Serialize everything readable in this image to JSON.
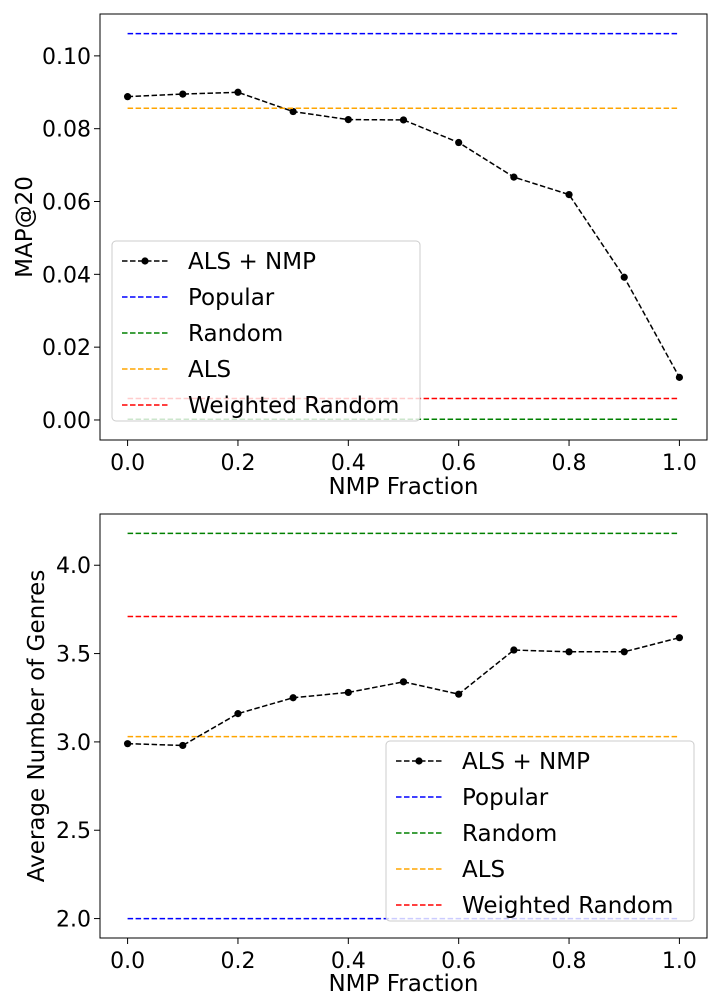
{
  "chart_data": [
    {
      "type": "line",
      "xlabel": "NMP Fraction",
      "ylabel": "MAP@20",
      "xlim": [
        -0.05,
        1.05
      ],
      "ylim": [
        -0.0055,
        0.1115
      ],
      "xticks": [
        0.0,
        0.2,
        0.4,
        0.6,
        0.8,
        1.0
      ],
      "xtick_labels": [
        "0.0",
        "0.2",
        "0.4",
        "0.6",
        "0.8",
        "1.0"
      ],
      "yticks": [
        0.0,
        0.02,
        0.04,
        0.06,
        0.08,
        0.1
      ],
      "ytick_labels": [
        "0.00",
        "0.02",
        "0.04",
        "0.06",
        "0.08",
        "0.10"
      ],
      "grid": false,
      "legend_position": "lower-left",
      "series": [
        {
          "name": "ALS + NMP",
          "color": "#000000",
          "style": "dashed-with-markers",
          "x": [
            0.0,
            0.1,
            0.2,
            0.3,
            0.4,
            0.5,
            0.6,
            0.7,
            0.8,
            0.9,
            1.0
          ],
          "y": [
            0.0888,
            0.0895,
            0.09,
            0.0847,
            0.0825,
            0.0824,
            0.0762,
            0.0667,
            0.0619,
            0.0392,
            0.0117
          ]
        },
        {
          "name": "Popular",
          "color": "#0000ff",
          "style": "dashed-horizontal",
          "x": [
            0.0,
            1.0
          ],
          "y": [
            0.1061,
            0.1061
          ]
        },
        {
          "name": "Random",
          "color": "#008000",
          "style": "dashed-horizontal",
          "x": [
            0.0,
            1.0
          ],
          "y": [
            0.0002,
            0.0002
          ]
        },
        {
          "name": "ALS",
          "color": "#ffa500",
          "style": "dashed-horizontal",
          "x": [
            0.0,
            1.0
          ],
          "y": [
            0.0856,
            0.0856
          ]
        },
        {
          "name": "Weighted Random",
          "color": "#ff0000",
          "style": "dashed-horizontal",
          "x": [
            0.0,
            1.0
          ],
          "y": [
            0.0059,
            0.0059
          ]
        }
      ]
    },
    {
      "type": "line",
      "xlabel": "NMP Fraction",
      "ylabel": "Average Number of Genres",
      "xlim": [
        -0.05,
        1.05
      ],
      "ylim": [
        1.89,
        4.29
      ],
      "xticks": [
        0.0,
        0.2,
        0.4,
        0.6,
        0.8,
        1.0
      ],
      "xtick_labels": [
        "0.0",
        "0.2",
        "0.4",
        "0.6",
        "0.8",
        "1.0"
      ],
      "yticks": [
        2.0,
        2.5,
        3.0,
        3.5,
        4.0
      ],
      "ytick_labels": [
        "2.0",
        "2.5",
        "3.0",
        "3.5",
        "4.0"
      ],
      "grid": false,
      "legend_position": "lower-right",
      "series": [
        {
          "name": "ALS + NMP",
          "color": "#000000",
          "style": "dashed-with-markers",
          "x": [
            0.0,
            0.1,
            0.2,
            0.3,
            0.4,
            0.5,
            0.6,
            0.7,
            0.8,
            0.9,
            1.0
          ],
          "y": [
            2.99,
            2.98,
            3.16,
            3.25,
            3.28,
            3.34,
            3.27,
            3.52,
            3.51,
            3.51,
            3.59
          ]
        },
        {
          "name": "Popular",
          "color": "#0000ff",
          "style": "dashed-horizontal",
          "x": [
            0.0,
            1.0
          ],
          "y": [
            2.0,
            2.0
          ]
        },
        {
          "name": "Random",
          "color": "#008000",
          "style": "dashed-horizontal",
          "x": [
            0.0,
            1.0
          ],
          "y": [
            4.18,
            4.18
          ]
        },
        {
          "name": "ALS",
          "color": "#ffa500",
          "style": "dashed-horizontal",
          "x": [
            0.0,
            1.0
          ],
          "y": [
            3.03,
            3.03
          ]
        },
        {
          "name": "Weighted Random",
          "color": "#ff0000",
          "style": "dashed-horizontal",
          "x": [
            0.0,
            1.0
          ],
          "y": [
            3.71,
            3.71
          ]
        }
      ]
    }
  ]
}
